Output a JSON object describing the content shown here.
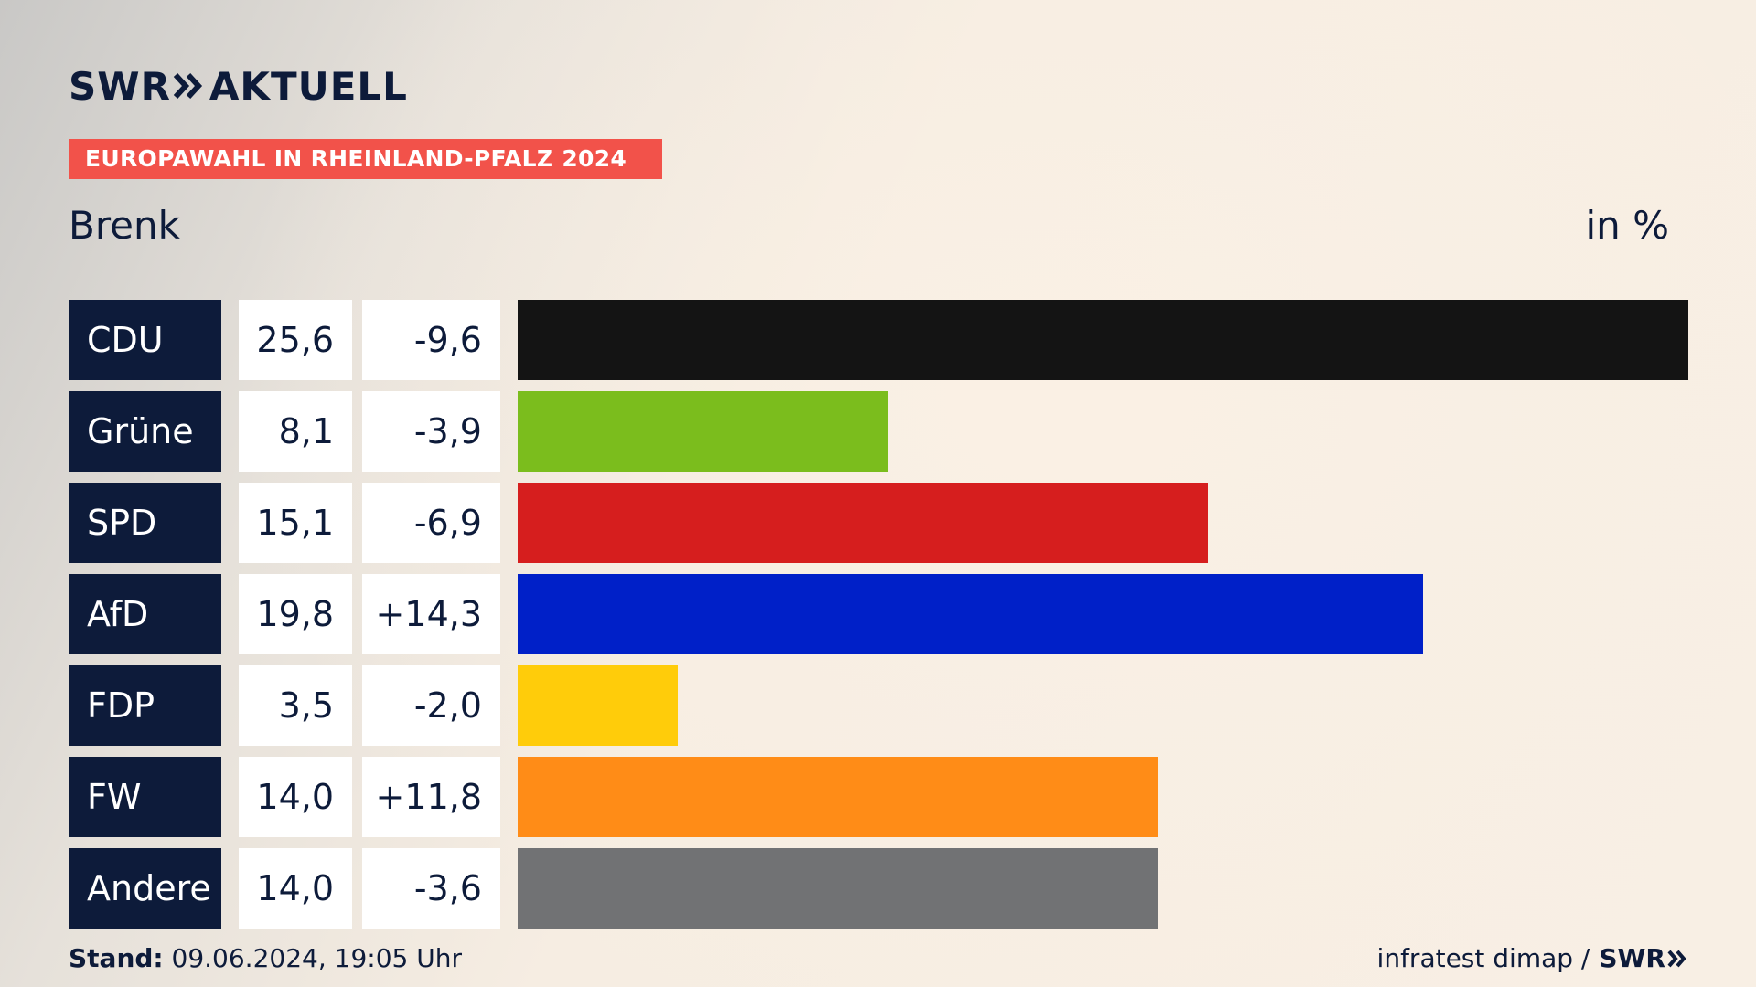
{
  "brand": {
    "logo_left": "SWR",
    "logo_right": "AKTUELL",
    "chevron_icon": "double-chevron-right-icon"
  },
  "header": {
    "ribbon": "EUROPAWAHL IN RHEINLAND-PFALZ 2024",
    "place": "Brenk",
    "unit": "in %"
  },
  "colors": {
    "ribbon": "#f2524a",
    "label_bg": "#0d1b3a"
  },
  "chart_data": {
    "type": "bar",
    "orientation": "horizontal",
    "title": "EUROPAWAHL IN RHEINLAND-PFALZ 2024",
    "subtitle": "Brenk",
    "unit": "in %",
    "categories": [
      "CDU",
      "Grüne",
      "SPD",
      "AfD",
      "FDP",
      "FW",
      "Andere"
    ],
    "values": [
      25.6,
      8.1,
      15.1,
      19.8,
      3.5,
      14.0,
      14.0
    ],
    "labels": [
      "25,6",
      "8,1",
      "15,1",
      "19,8",
      "3,5",
      "14,0",
      "14,0"
    ],
    "changes": [
      "-9,6",
      "-3,9",
      "-6,9",
      "+14,3",
      "-2,0",
      "+11,8",
      "-3,6"
    ],
    "colors": [
      "#141414",
      "#7bbd1d",
      "#d61e1e",
      "#0020c8",
      "#ffcc0a",
      "#ff8c17",
      "#717274"
    ],
    "xlim": [
      0,
      25.6
    ]
  },
  "footer": {
    "stand_label": "Stand:",
    "stand_value": " 09.06.2024, 19:05 Uhr",
    "source": "infratest dimap /",
    "source_logo": "SWR"
  }
}
